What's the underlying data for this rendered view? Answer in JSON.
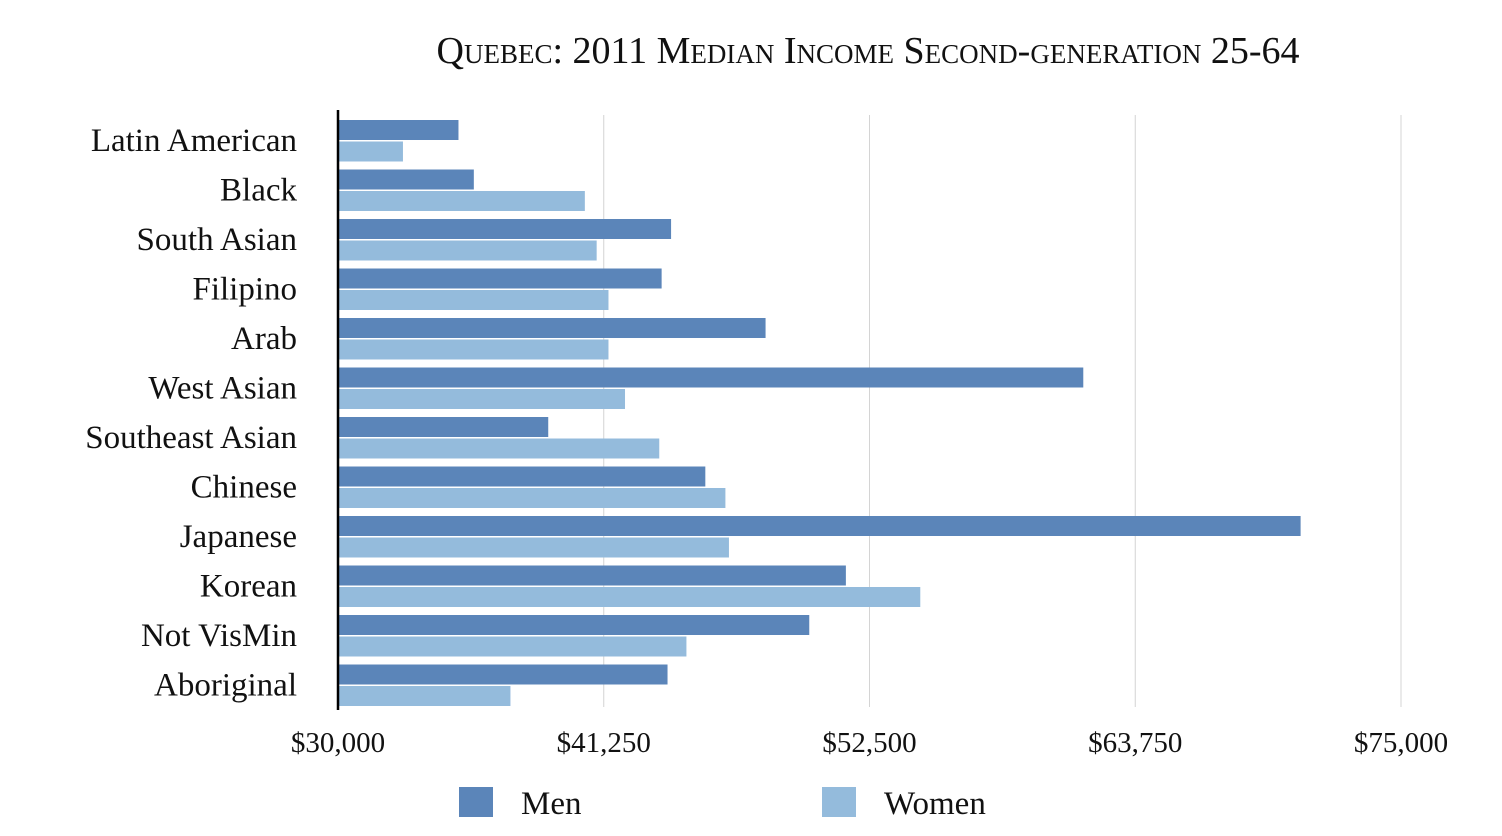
{
  "chart_data": {
    "type": "bar",
    "orientation": "horizontal",
    "title": "Quebec: 2011 Median Income Second-generation 25-64",
    "xlabel": "",
    "ylabel": "",
    "xlim": [
      30000,
      75000
    ],
    "xticks": [
      30000,
      41250,
      52500,
      63750,
      75000
    ],
    "xtick_labels": [
      "$30,000",
      "$41,250",
      "$52,500",
      "$63,750",
      "$75,000"
    ],
    "grid": "vertical",
    "legend_position": "bottom",
    "categories": [
      "Latin American",
      "Black",
      "South Asian",
      "Filipino",
      "Arab",
      "West Asian",
      "Southeast Asian",
      "Chinese",
      "Japanese",
      "Korean",
      "Not VisMin",
      "Aboriginal"
    ],
    "series": [
      {
        "name": "Men",
        "color": "#5b85b9",
        "values": [
          35100,
          35750,
          44100,
          43700,
          48100,
          61550,
          38900,
          45550,
          70750,
          51500,
          49950,
          43950
        ]
      },
      {
        "name": "Women",
        "color": "#94bbdc",
        "values": [
          32750,
          40450,
          40950,
          41450,
          41450,
          42150,
          43600,
          46400,
          46550,
          54650,
          44750,
          37300
        ]
      }
    ]
  }
}
